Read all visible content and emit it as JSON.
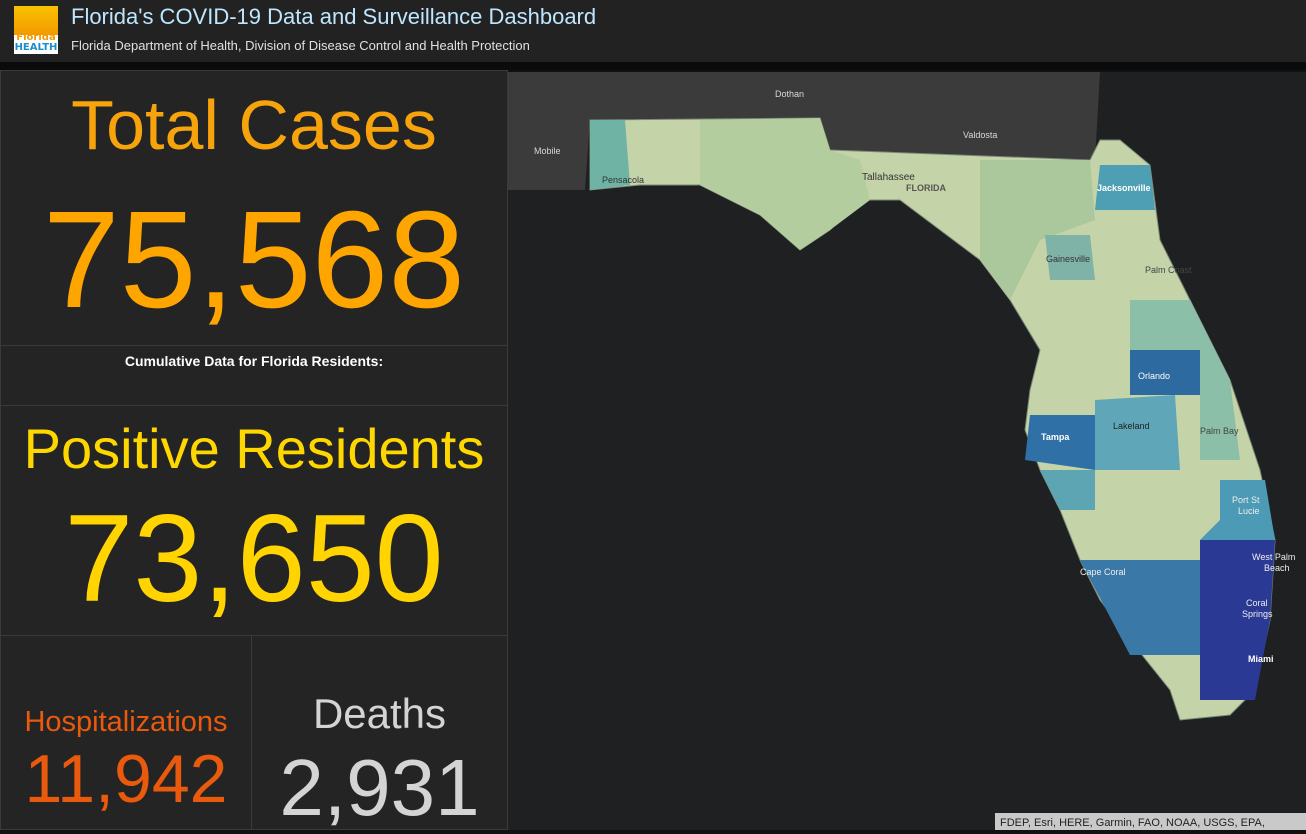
{
  "header": {
    "logo_top": "Florida",
    "logo_bottom": "HEALTH",
    "title": "Florida's COVID-19 Data and Surveillance Dashboard",
    "subtitle": "Florida Department of Health, Division of Disease Control and Health Protection"
  },
  "panels": {
    "total_cases": {
      "label": "Total Cases",
      "value": "75,568"
    },
    "note": "Cumulative Data for Florida Residents:",
    "positive_residents": {
      "label": "Positive Residents",
      "value": "73,650"
    },
    "hospitalizations": {
      "label": "Hospitalizations",
      "value": "11,942"
    },
    "deaths": {
      "label": "Deaths",
      "value": "2,931"
    }
  },
  "map": {
    "labels": {
      "dothan": "Dothan",
      "mobile": "Mobile",
      "valdosta": "Valdosta",
      "pensacola": "Pensacola",
      "tallahassee": "Tallahassee",
      "florida": "FLORIDA",
      "jacksonville": "Jacksonville",
      "gainesville": "Gainesville",
      "palm_coast": "Palm Coast",
      "orlando": "Orlando",
      "lakeland": "Lakeland",
      "tampa": "Tampa",
      "palm_bay": "Palm Bay",
      "port_st_lucie": [
        "Port St",
        "Lucie"
      ],
      "west_palm_beach": [
        "West Palm",
        "Beach"
      ],
      "cape_coral": "Cape Coral",
      "coral_springs": [
        "Coral",
        "Springs"
      ],
      "miami": "Miami"
    },
    "attribution": "FDEP, Esri, HERE, Garmin, FAO, NOAA, USGS, EPA,"
  }
}
